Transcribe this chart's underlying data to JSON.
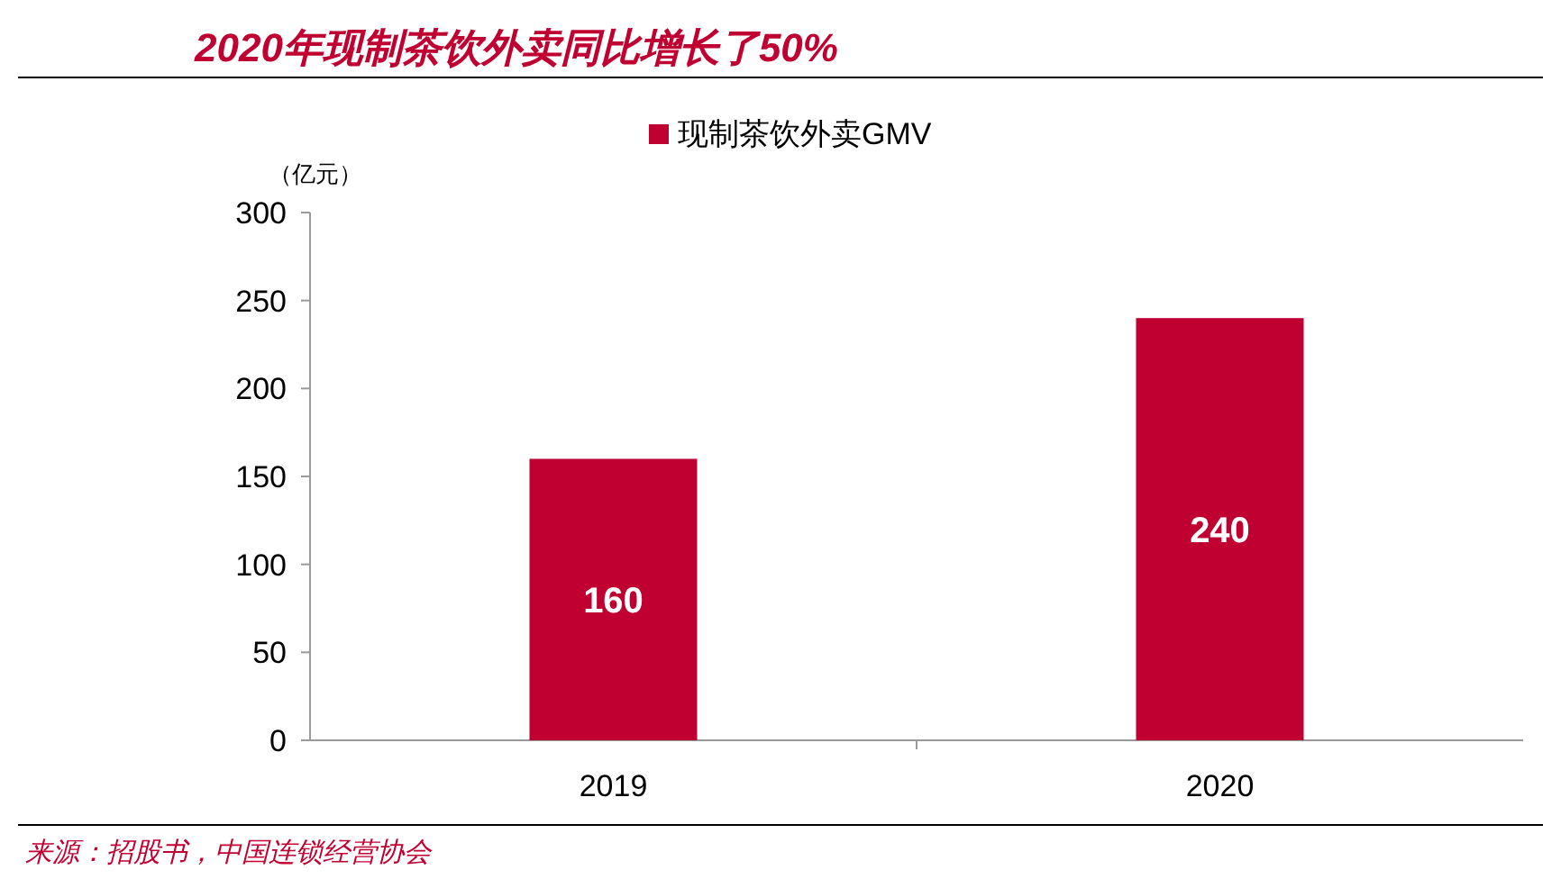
{
  "chart_data": {
    "type": "bar",
    "title": "2020年现制茶饮外卖同比增长了50%",
    "ylabel": "（亿元）",
    "categories": [
      "2019",
      "2020"
    ],
    "series": [
      {
        "name": "现制茶饮外卖GMV",
        "color": "#c00030",
        "values": [
          160,
          240
        ]
      }
    ],
    "ylim": [
      0,
      300
    ],
    "yticks": [
      0,
      50,
      100,
      150,
      200,
      250,
      300
    ],
    "data_labels": true,
    "legend": "top",
    "grid": false,
    "annotations": [
      "来源：招股书，中国连锁经营协会"
    ]
  }
}
